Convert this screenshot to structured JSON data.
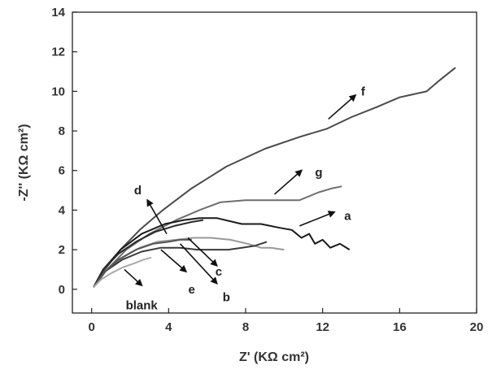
{
  "chart_data": {
    "type": "line",
    "title": "",
    "xlabel": "Z' (KΩ cm²)",
    "ylabel": "-Z'' (KΩ cm²)",
    "xlim": [
      -1,
      20
    ],
    "ylim": [
      -1.2,
      14
    ],
    "xticks": [
      0,
      4,
      8,
      12,
      16,
      20
    ],
    "yticks": [
      0,
      2,
      4,
      6,
      8,
      10,
      12,
      14
    ],
    "xtick_labels": [
      "0",
      "4",
      "8",
      "12",
      "16",
      "20"
    ],
    "ytick_labels": [
      "0",
      "2",
      "4",
      "6",
      "8",
      "10",
      "12",
      "14"
    ],
    "grid": false,
    "legend": "none",
    "series": [
      {
        "name": "f",
        "color": "#4a4a4a",
        "x": [
          0.1,
          0.6,
          1.5,
          2.5,
          3.7,
          5.2,
          7.0,
          9.0,
          10.8,
          12.2,
          13.5,
          14.8,
          16.0,
          17.4,
          18.0,
          18.9
        ],
        "y": [
          0.1,
          0.9,
          2.0,
          3.0,
          4.0,
          5.1,
          6.2,
          7.1,
          7.7,
          8.1,
          8.7,
          9.2,
          9.7,
          10.0,
          10.5,
          11.2
        ],
        "label_x": 14.1,
        "label_y": 10.0,
        "arrow": {
          "from": [
            12.3,
            8.6
          ],
          "to": [
            13.7,
            9.8
          ]
        }
      },
      {
        "name": "g",
        "color": "#6e6e6e",
        "x": [
          0.1,
          0.8,
          1.8,
          3.0,
          4.4,
          5.6,
          6.7,
          8.0,
          9.5,
          10.8,
          11.8,
          12.5,
          13.0
        ],
        "y": [
          0.1,
          1.0,
          2.0,
          2.8,
          3.5,
          4.0,
          4.4,
          4.5,
          4.5,
          4.5,
          4.9,
          5.1,
          5.2
        ],
        "label_x": 11.8,
        "label_y": 5.9,
        "arrow": {
          "from": [
            9.5,
            4.8
          ],
          "to": [
            10.9,
            6.0
          ]
        }
      },
      {
        "name": "a",
        "color": "#1a1a1a",
        "x": [
          0.1,
          0.6,
          1.5,
          2.6,
          3.8,
          4.8,
          5.6,
          6.5,
          7.8,
          8.8,
          9.8,
          10.4,
          10.9,
          11.3,
          11.6,
          12.0,
          12.4,
          12.9,
          13.4
        ],
        "y": [
          0.1,
          1.0,
          2.0,
          2.8,
          3.3,
          3.5,
          3.6,
          3.6,
          3.3,
          3.3,
          3.1,
          3.0,
          2.6,
          2.8,
          2.3,
          2.5,
          2.1,
          2.3,
          2.0
        ],
        "label_x": 13.3,
        "label_y": 3.7,
        "arrow": {
          "from": [
            10.8,
            3.2
          ],
          "to": [
            12.6,
            3.9
          ]
        }
      },
      {
        "name": "d",
        "color": "#2a2a2a",
        "x": [
          0.1,
          0.6,
          1.4,
          2.3,
          3.3,
          4.3,
          5.2,
          5.8
        ],
        "y": [
          0.1,
          1.0,
          1.8,
          2.4,
          2.9,
          3.2,
          3.4,
          3.5
        ],
        "label_x": 2.4,
        "label_y": 5.0,
        "arrow": {
          "from": [
            3.9,
            2.8
          ],
          "to": [
            2.9,
            4.5
          ]
        }
      },
      {
        "name": "c",
        "color": "#999999",
        "x": [
          0.1,
          0.7,
          1.6,
          2.5,
          3.4,
          4.4,
          5.3,
          6.2,
          7.2,
          8.1,
          8.8,
          9.3,
          10.0
        ],
        "y": [
          0.1,
          0.9,
          1.6,
          2.1,
          2.4,
          2.5,
          2.6,
          2.6,
          2.5,
          2.3,
          2.1,
          2.1,
          2.0
        ],
        "label_x": 6.6,
        "label_y": 0.9,
        "arrow": {
          "from": [
            5.0,
            2.6
          ],
          "to": [
            6.5,
            1.2
          ]
        }
      },
      {
        "name": "b",
        "color": "#3a3a3a",
        "x": [
          0.1,
          0.7,
          1.6,
          2.6,
          3.6,
          4.6,
          5.5,
          6.3,
          7.1,
          7.8,
          8.5,
          9.1
        ],
        "y": [
          0.1,
          0.9,
          1.5,
          1.9,
          2.1,
          2.1,
          2.0,
          2.0,
          2.0,
          2.1,
          2.2,
          2.4
        ],
        "label_x": 7.0,
        "label_y": -0.4,
        "arrow": {
          "from": [
            4.6,
            2.3
          ],
          "to": [
            6.5,
            0.3
          ]
        }
      },
      {
        "name": "e",
        "color": "#555555",
        "x": [
          0.1,
          0.6,
          1.4,
          2.3,
          3.2,
          4.0,
          4.6,
          5.2
        ],
        "y": [
          0.1,
          0.8,
          1.5,
          2.0,
          2.3,
          2.4,
          2.5,
          2.5
        ],
        "label_x": 5.2,
        "label_y": 0.0,
        "arrow": {
          "from": [
            3.6,
            2.0
          ],
          "to": [
            4.9,
            0.9
          ]
        }
      },
      {
        "name": "blank",
        "color": "#aaaaaa",
        "x": [
          0.1,
          0.5,
          1.0,
          1.6,
          2.2,
          2.7,
          3.1
        ],
        "y": [
          0.1,
          0.5,
          0.8,
          1.1,
          1.3,
          1.5,
          1.6
        ],
        "label_x": 2.6,
        "label_y": -0.8,
        "arrow": {
          "from": [
            1.7,
            1.0
          ],
          "to": [
            2.6,
            0.2
          ]
        }
      }
    ]
  }
}
